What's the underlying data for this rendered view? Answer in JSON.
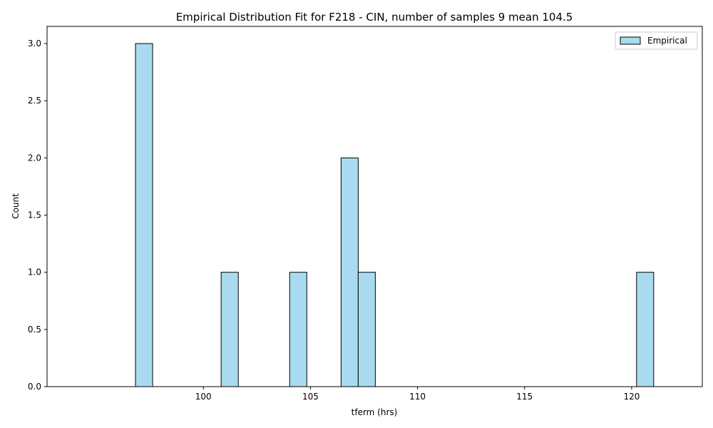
{
  "chart_data": {
    "type": "bar",
    "title": "Empirical Distribution Fit for F218 - CIN, number of samples 9 mean 104.5",
    "xlabel": "tferm (hrs)",
    "ylabel": "Count",
    "xlim": [
      92.7,
      123.3
    ],
    "ylim": [
      0,
      3.15
    ],
    "xticks": [
      100,
      105,
      110,
      115,
      120
    ],
    "xtick_labels": [
      "100",
      "105",
      "110",
      "115",
      "120"
    ],
    "yticks": [
      0,
      0.5,
      1,
      1.5,
      2,
      2.5,
      3
    ],
    "ytick_labels": [
      "0.0",
      "0.5",
      "1.0",
      "1.5",
      "2.0",
      "2.5",
      "3.0"
    ],
    "grid": false,
    "legend_position": "top-right",
    "series": [
      {
        "name": "Empirical",
        "color": "#a8dbef",
        "edge_color": "#000000",
        "bins": [
          {
            "x0": 96.83,
            "x1": 97.63,
            "count": 3
          },
          {
            "x0": 100.83,
            "x1": 101.63,
            "count": 1
          },
          {
            "x0": 104.03,
            "x1": 104.83,
            "count": 1
          },
          {
            "x0": 106.43,
            "x1": 107.23,
            "count": 2
          },
          {
            "x0": 107.23,
            "x1": 108.03,
            "count": 1
          },
          {
            "x0": 120.23,
            "x1": 121.03,
            "count": 1
          }
        ]
      }
    ]
  }
}
